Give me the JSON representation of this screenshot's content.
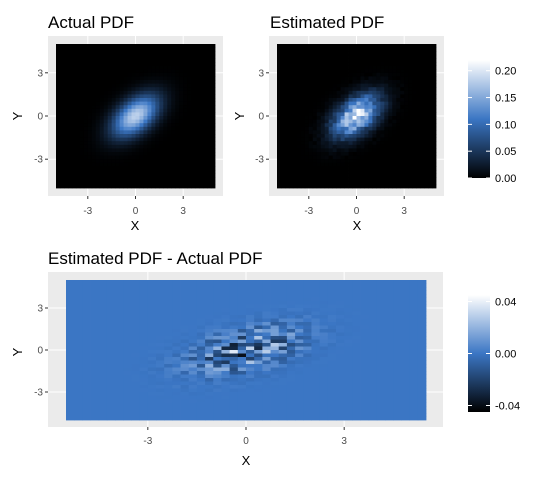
{
  "chart_data": [
    {
      "type": "heatmap",
      "title": "Actual PDF",
      "xlabel": "X",
      "ylabel": "Y",
      "xlim": [
        -5,
        5
      ],
      "ylim": [
        -5,
        5
      ],
      "xticks": [
        -3,
        0,
        3
      ],
      "yticks": [
        -3,
        0,
        3
      ],
      "xtick_labels": [
        "-3",
        "0",
        "3"
      ],
      "ytick_labels": [
        "-3",
        "0",
        "3"
      ],
      "value_range": [
        0,
        0.22
      ],
      "distribution": {
        "mean": [
          0,
          0
        ],
        "sd": [
          1,
          1
        ],
        "corr": 0.5,
        "peak": 0.184
      },
      "noise": 0,
      "colorbar": "shared-top",
      "grid": true
    },
    {
      "type": "heatmap",
      "title": "Estimated PDF",
      "xlabel": "X",
      "ylabel": "Y",
      "xlim": [
        -5,
        5
      ],
      "ylim": [
        -5,
        5
      ],
      "xticks": [
        -3,
        0,
        3
      ],
      "yticks": [
        -3,
        0,
        3
      ],
      "xtick_labels": [
        "-3",
        "0",
        "3"
      ],
      "ytick_labels": [
        "-3",
        "0",
        "3"
      ],
      "value_range": [
        0,
        0.22
      ],
      "distribution": {
        "mean": [
          0,
          0
        ],
        "sd": [
          1,
          1
        ],
        "corr": 0.5,
        "peak": 0.2
      },
      "noise": 0.25,
      "colorbar": "shared-top",
      "grid": true
    },
    {
      "type": "heatmap",
      "title": "Estimated PDF - Actual PDF",
      "xlabel": "X",
      "ylabel": "Y",
      "xlim": [
        -5.5,
        5.5
      ],
      "ylim": [
        -5,
        5
      ],
      "xticks": [
        -3,
        0,
        3
      ],
      "yticks": [
        -3,
        0,
        3
      ],
      "xtick_labels": [
        "-3",
        "0",
        "3"
      ],
      "ytick_labels": [
        "-3",
        "0",
        "3"
      ],
      "value_range": [
        -0.045,
        0.045
      ],
      "noise_amplitude": 0.03,
      "colorbar": "bottom",
      "grid": true
    }
  ],
  "colorbars": [
    {
      "id": "top",
      "range": [
        0,
        0.22
      ],
      "ticks": [
        0.0,
        0.05,
        0.1,
        0.15,
        0.2
      ],
      "tick_labels": [
        "0.00",
        "0.05",
        "0.10",
        "0.15",
        "0.20"
      ]
    },
    {
      "id": "bottom",
      "range": [
        -0.045,
        0.045
      ],
      "ticks": [
        -0.04,
        0.0,
        0.04
      ],
      "tick_labels": [
        "-0.04",
        "0.00",
        "0.04"
      ]
    }
  ],
  "colors": {
    "panel_bg": "#ebebeb",
    "grid": "#ffffff",
    "tick_text": "#4d4d4d",
    "ramp_low": "#000000",
    "ramp_mid": "#3b76c4",
    "ramp_high": "#ffffff",
    "diff_base": "#3d78c7"
  }
}
